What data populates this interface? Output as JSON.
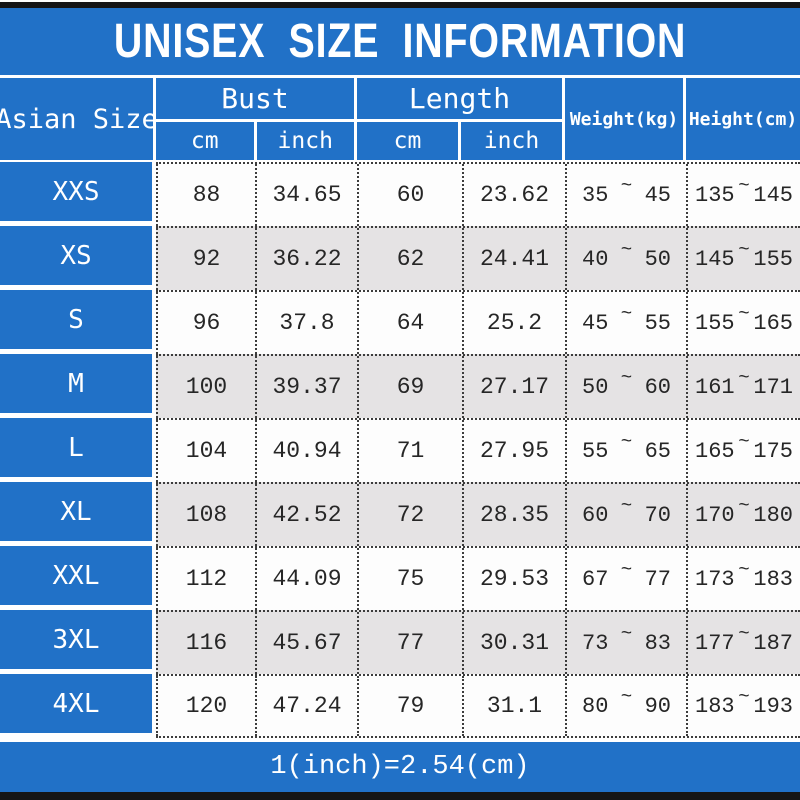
{
  "title": "UNISEX SIZE INFORMATION",
  "footer_note": "1(inch)=2.54(cm)",
  "table": {
    "size_col_header": "Asian Size",
    "groups": [
      {
        "label": "Bust",
        "sub": [
          "cm",
          "inch"
        ]
      },
      {
        "label": "Length",
        "sub": [
          "cm",
          "inch"
        ]
      }
    ],
    "weight_header": "Weight(kg)",
    "height_header": "Height(cm)",
    "range_separator": "~"
  },
  "chart_data": {
    "type": "table",
    "title": "UNISEX SIZE INFORMATION",
    "columns": [
      "Asian Size",
      "Bust cm",
      "Bust inch",
      "Length cm",
      "Length inch",
      "Weight(kg)",
      "Height(cm)"
    ],
    "footnote": "1(inch)=2.54(cm)",
    "rows": [
      {
        "size": "XXS",
        "bust_cm": "88",
        "bust_inch": "34.65",
        "length_cm": "60",
        "length_inch": "23.62",
        "weight_min": "35",
        "weight_max": "45",
        "height_min": "135",
        "height_max": "145"
      },
      {
        "size": "XS",
        "bust_cm": "92",
        "bust_inch": "36.22",
        "length_cm": "62",
        "length_inch": "24.41",
        "weight_min": "40",
        "weight_max": "50",
        "height_min": "145",
        "height_max": "155"
      },
      {
        "size": "S",
        "bust_cm": "96",
        "bust_inch": "37.8",
        "length_cm": "64",
        "length_inch": "25.2",
        "weight_min": "45",
        "weight_max": "55",
        "height_min": "155",
        "height_max": "165"
      },
      {
        "size": "M",
        "bust_cm": "100",
        "bust_inch": "39.37",
        "length_cm": "69",
        "length_inch": "27.17",
        "weight_min": "50",
        "weight_max": "60",
        "height_min": "161",
        "height_max": "171"
      },
      {
        "size": "L",
        "bust_cm": "104",
        "bust_inch": "40.94",
        "length_cm": "71",
        "length_inch": "27.95",
        "weight_min": "55",
        "weight_max": "65",
        "height_min": "165",
        "height_max": "175"
      },
      {
        "size": "XL",
        "bust_cm": "108",
        "bust_inch": "42.52",
        "length_cm": "72",
        "length_inch": "28.35",
        "weight_min": "60",
        "weight_max": "70",
        "height_min": "170",
        "height_max": "180"
      },
      {
        "size": "XXL",
        "bust_cm": "112",
        "bust_inch": "44.09",
        "length_cm": "75",
        "length_inch": "29.53",
        "weight_min": "67",
        "weight_max": "77",
        "height_min": "173",
        "height_max": "183"
      },
      {
        "size": "3XL",
        "bust_cm": "116",
        "bust_inch": "45.67",
        "length_cm": "77",
        "length_inch": "30.31",
        "weight_min": "73",
        "weight_max": "83",
        "height_min": "177",
        "height_max": "187"
      },
      {
        "size": "4XL",
        "bust_cm": "120",
        "bust_inch": "47.24",
        "length_cm": "79",
        "length_inch": "31.1",
        "weight_min": "80",
        "weight_max": "90",
        "height_min": "183",
        "height_max": "193"
      }
    ]
  },
  "colors": {
    "primary_blue": "#2171c7",
    "row_alt_gray": "#e5e3e4",
    "row_white": "#fdfdfd",
    "dotted_line": "#3c3c3c",
    "cell_text": "#262626",
    "bar_black": "#151515",
    "header_text": "#ffffff"
  }
}
